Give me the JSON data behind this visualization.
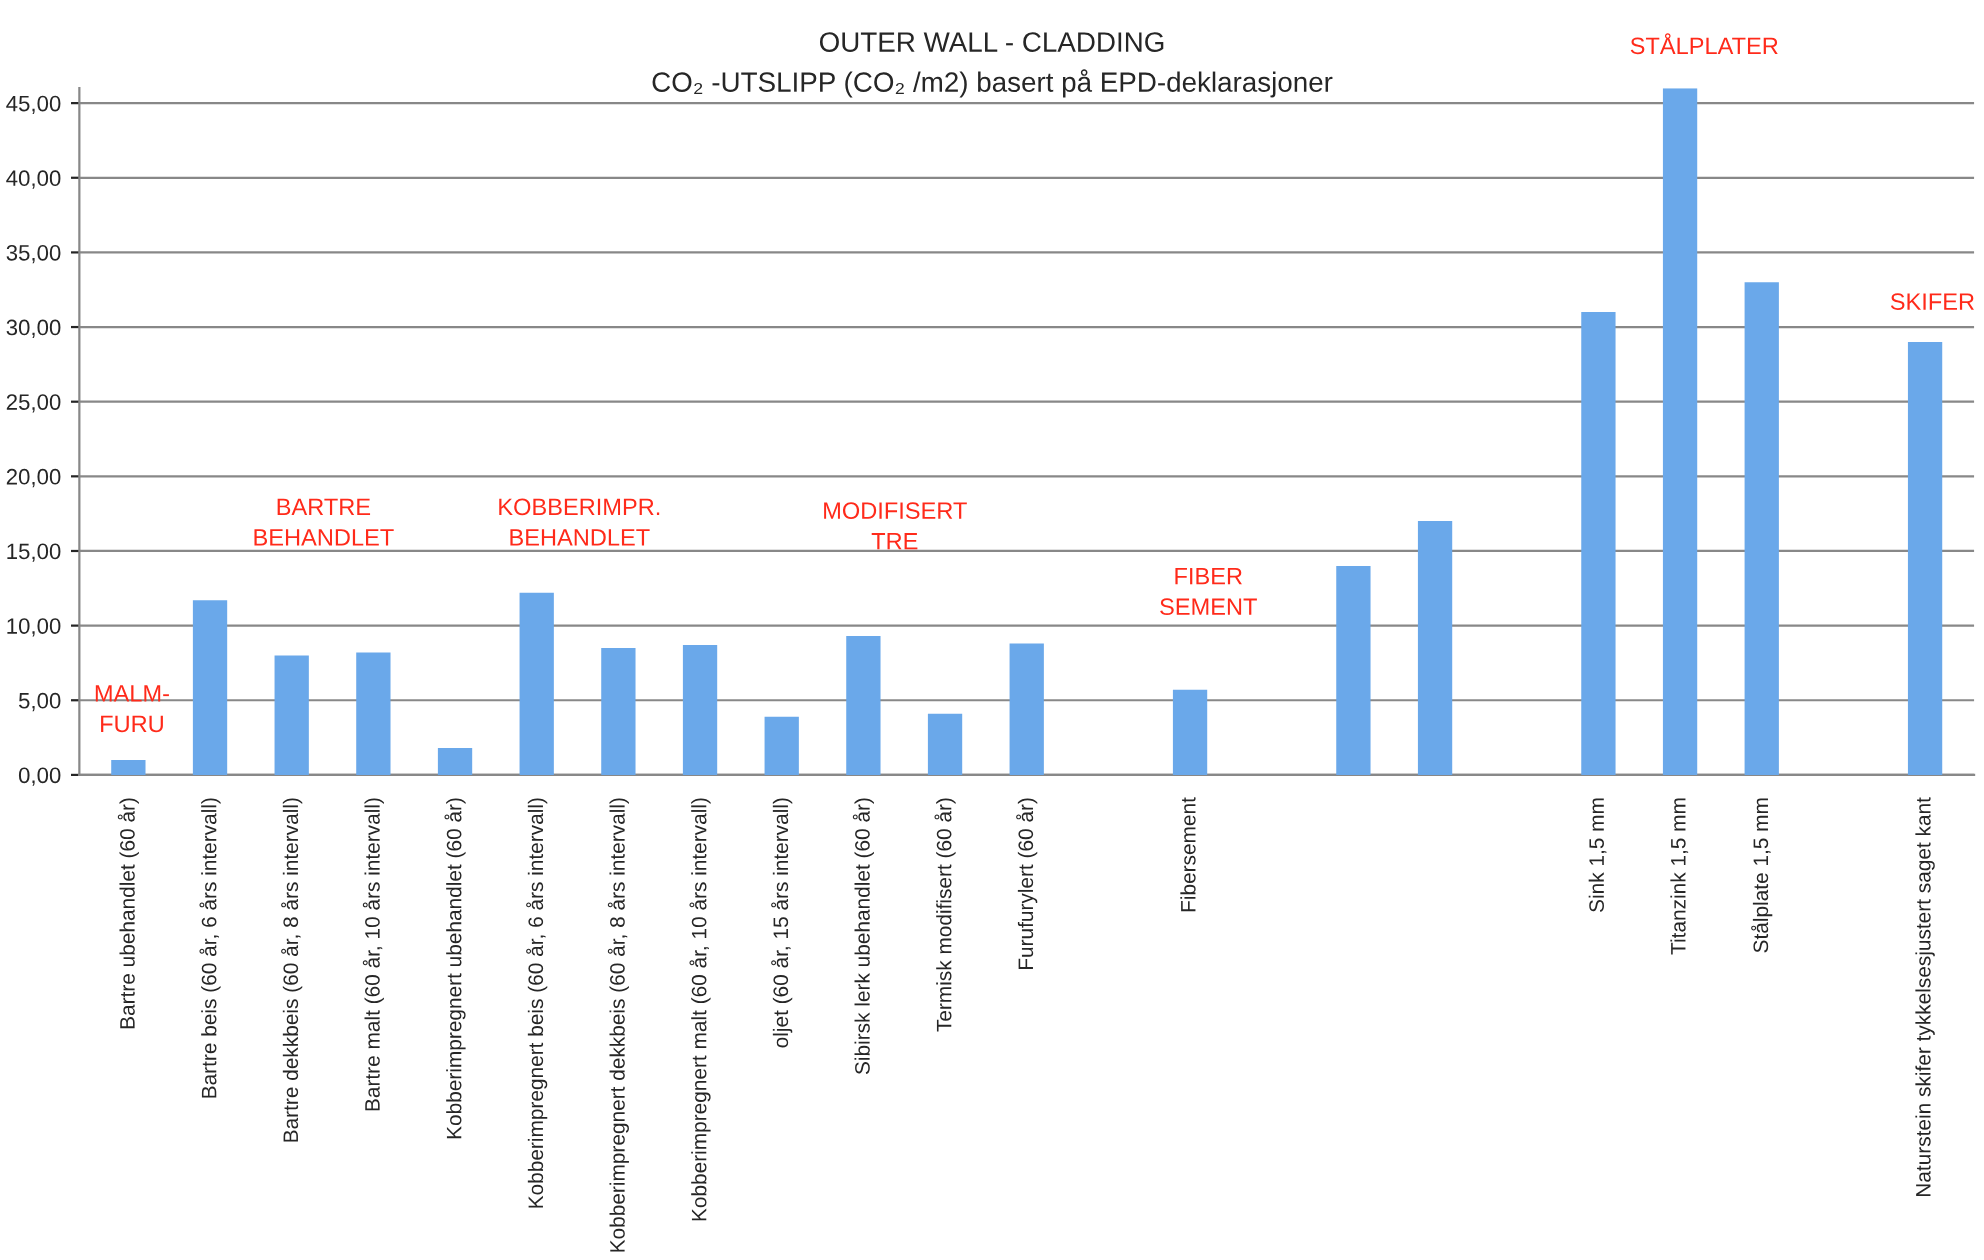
{
  "chart_data": {
    "type": "bar",
    "title": "OUTER WALL - CLADDING",
    "subtitle": "CO₂ -UTSLIPP (CO₂ /m2) basert på EPD-deklarasjoner",
    "categories": [
      "Bartre ubehandlet (60 år)",
      "Bartre beis (60 år, 6 års intervall)",
      "Bartre dekkbeis (60 år, 8 års intervall)",
      "Bartre malt (60 år, 10 års intervall)",
      "Kobberimpregnert ubehandlet (60 år)",
      "Kobberimpregnert beis (60 år, 6 års intervall)",
      "Kobberimpregnert dekkbeis (60 år, 8 års intervall)",
      "Kobberimpregnert malt (60 år, 10 års intervall)",
      "oljet (60 år, 15 års intervall)",
      "Sibirsk lerk ubehandlet (60 år)",
      "Termisk modifisert (60 år)",
      "Furufurylert (60 år)",
      null,
      "Fibersement",
      null,
      null,
      null,
      null,
      "Sink 1,5 mm",
      "Titanzink 1,5 mm",
      "Stålplate 1,5 mm",
      null,
      "Naturstein skifer tykkelsesjustert saget kant"
    ],
    "values": [
      1.0,
      11.7,
      8.0,
      8.2,
      1.8,
      12.2,
      8.5,
      8.7,
      3.9,
      9.3,
      4.1,
      8.8,
      null,
      5.7,
      null,
      14.0,
      17.0,
      null,
      31.0,
      46.0,
      33.0,
      null,
      29.0
    ],
    "color": "#6aa8ea",
    "ylim": [
      0,
      46
    ],
    "yticks": [
      {
        "value": 0,
        "label": "0,00"
      },
      {
        "value": 5,
        "label": "5,00"
      },
      {
        "value": 10,
        "label": "10,00"
      },
      {
        "value": 15,
        "label": "15,00"
      },
      {
        "value": 20,
        "label": "20,00"
      },
      {
        "value": 25,
        "label": "25,00"
      },
      {
        "value": 30,
        "label": "30,00"
      },
      {
        "value": 35,
        "label": "35,00"
      },
      {
        "value": 40,
        "label": "40,00"
      },
      {
        "value": 45,
        "label": "45,00"
      }
    ],
    "grid": "y",
    "annotations": [
      "MALM-\nFURU",
      "BARTRE\nBEHANDLET",
      "KOBBERIMPR.\nBEHANDLET",
      "MODIFISERT\nTRE",
      "FIBER\nSEMENT",
      "STÅLPLATER",
      "SKIFER"
    ]
  }
}
